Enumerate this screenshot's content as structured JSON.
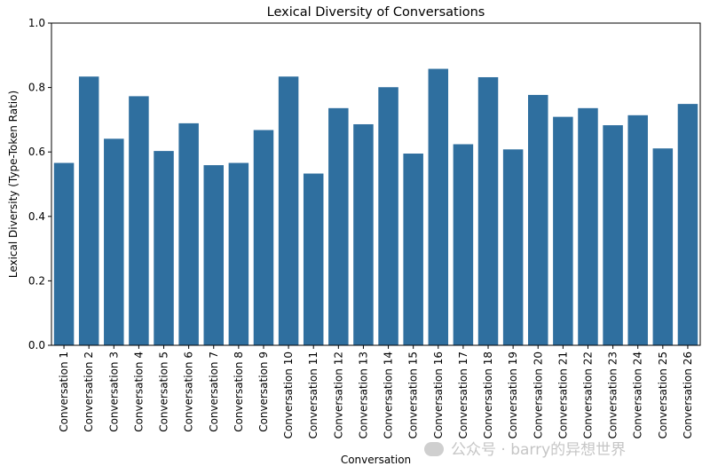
{
  "chart_data": {
    "type": "bar",
    "title": "Lexical Diversity of Conversations",
    "xlabel": "Conversation",
    "ylabel": "Lexical Diversity (Type-Token Ratio)",
    "ylim": [
      0,
      1.0
    ],
    "yticks": [
      0.0,
      0.2,
      0.4,
      0.6,
      0.8,
      1.0
    ],
    "ytick_labels": [
      "0.0",
      "0.2",
      "0.4",
      "0.6",
      "0.8",
      "1.0"
    ],
    "categories": [
      "Conversation 1",
      "Conversation 2",
      "Conversation 3",
      "Conversation 4",
      "Conversation 5",
      "Conversation 6",
      "Conversation 7",
      "Conversation 8",
      "Conversation 9",
      "Conversation 10",
      "Conversation 11",
      "Conversation 12",
      "Conversation 13",
      "Conversation 14",
      "Conversation 15",
      "Conversation 16",
      "Conversation 17",
      "Conversation 18",
      "Conversation 19",
      "Conversation 20",
      "Conversation 21",
      "Conversation 22",
      "Conversation 23",
      "Conversation 24",
      "Conversation 25",
      "Conversation 26"
    ],
    "values": [
      0.566,
      0.834,
      0.641,
      0.773,
      0.603,
      0.689,
      0.559,
      0.566,
      0.668,
      0.834,
      0.533,
      0.736,
      0.686,
      0.801,
      0.595,
      0.858,
      0.624,
      0.832,
      0.608,
      0.777,
      0.709,
      0.736,
      0.683,
      0.714,
      0.611,
      0.749
    ],
    "bar_color": "#2f6f9f",
    "grid": false
  },
  "watermark": {
    "text": "公众号 · barry的异想世界"
  }
}
